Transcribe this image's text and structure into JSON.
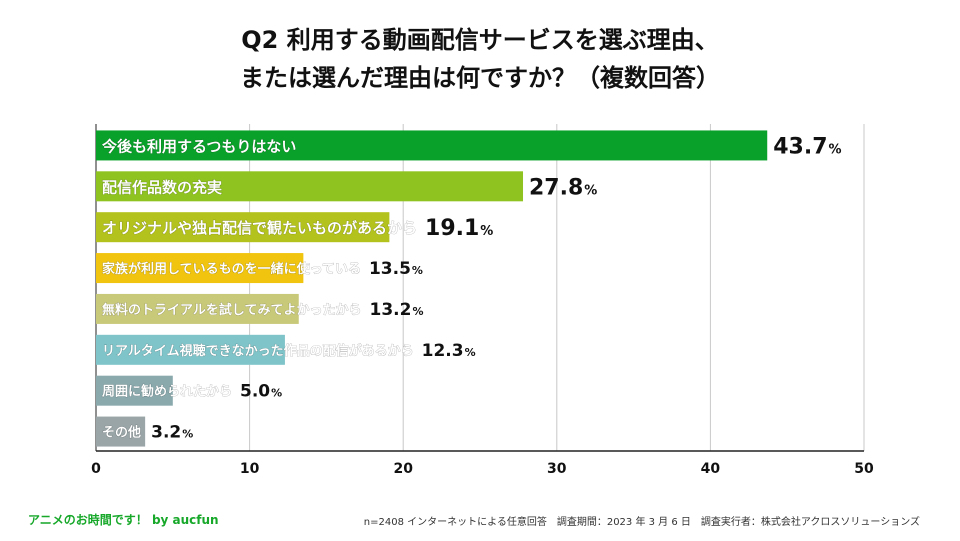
{
  "title": {
    "line1": "Q2  利用する動画配信サービスを選ぶ理由、",
    "line2": "または選んだ理由は何ですか？（複数回答）"
  },
  "chart_data": {
    "type": "bar",
    "orientation": "horizontal",
    "categories": [
      "今後も利用するつもりはない",
      "配信作品数の充実",
      "オリジナルや独占配信で観たいものがあるから",
      "家族が利用しているものを一緒に使っている",
      "無料のトライアルを試してみてよかったから",
      "リアルタイム視聴できなかった作品の配信があるから",
      "周囲に勧められたから",
      "その他"
    ],
    "values": [
      43.7,
      27.8,
      19.1,
      13.5,
      13.2,
      12.3,
      5.0,
      3.2
    ],
    "value_labels": [
      "43.7",
      "27.8",
      "19.1",
      "13.5",
      "13.2",
      "12.3",
      "5.0",
      "3.2"
    ],
    "unit": "%",
    "colors": [
      "#0aa12a",
      "#8fc31f",
      "#b3c21c",
      "#f1c40f",
      "#c9c97a",
      "#7fc4c9",
      "#8aa9ad",
      "#9aa5a8"
    ],
    "xlim": [
      0,
      50
    ],
    "xticks": [
      "0",
      "10",
      "20",
      "30",
      "40",
      "50"
    ],
    "grid": true,
    "xlabel": "",
    "ylabel": ""
  },
  "footer": {
    "left": "アニメのお時間です！ by aucfun",
    "right": "n=2408 インターネットによる任意回答　調査期間：2023 年 3 月 6 日　調査実行者：株式会社アクロスソリューションズ"
  }
}
